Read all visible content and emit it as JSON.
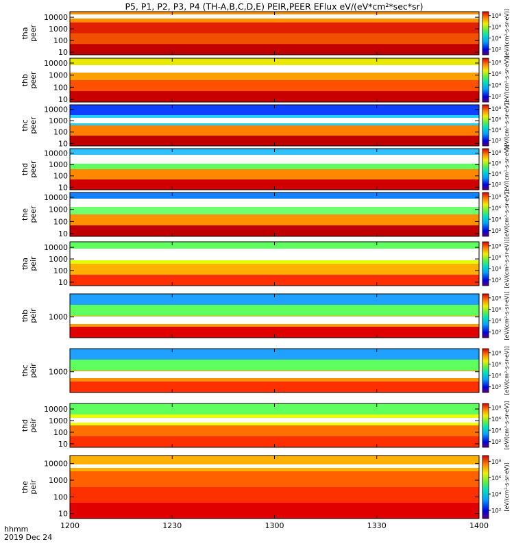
{
  "chart_data": {
    "type": "heatmap",
    "title": "P5, P1, P2, P3, P4 (TH-A,B,C,D,E) PEIR,PEER EFlux eV/(eV*cm²*sec*sr)",
    "x_axis": {
      "label_line1": "hhmm",
      "label_line2": "2019 Dec 24",
      "ticks": [
        "1200",
        "1230",
        "1300",
        "1330",
        "1400"
      ],
      "tick_minutes": [
        0,
        30,
        60,
        90,
        120
      ],
      "range_minutes": [
        0,
        120
      ]
    },
    "colorbar": {
      "scale": "log",
      "label": "[eV/(cm²-s-sr-eV)]",
      "tick_labels": [
        "10⁸",
        "10⁶",
        "10⁴",
        "10²"
      ],
      "tick_exponents": [
        8,
        6,
        4,
        2
      ],
      "range_exponent": [
        1,
        8.7
      ]
    },
    "panels": [
      {
        "label_line1": "tha",
        "label_line2": "peer",
        "yscale": "log",
        "yrange": [
          6,
          30000
        ],
        "y_ticks": [
          "10",
          "100",
          "1000",
          "10000"
        ],
        "y_tick_values": [
          10,
          100,
          1000,
          10000
        ]
      },
      {
        "label_line1": "thb",
        "label_line2": "peer",
        "yscale": "log",
        "yrange": [
          6,
          25000
        ],
        "y_ticks": [
          "10",
          "100",
          "1000",
          "10000"
        ],
        "y_tick_values": [
          10,
          100,
          1000,
          10000
        ]
      },
      {
        "label_line1": "thc",
        "label_line2": "peer",
        "yscale": "log",
        "yrange": [
          6,
          25000
        ],
        "y_ticks": [
          "10",
          "100",
          "1000",
          "10000"
        ],
        "y_tick_values": [
          10,
          100,
          1000,
          10000
        ]
      },
      {
        "label_line1": "thd",
        "label_line2": "peer",
        "yscale": "log",
        "yrange": [
          6,
          25000
        ],
        "y_ticks": [
          "10",
          "100",
          "1000",
          "10000"
        ],
        "y_tick_values": [
          10,
          100,
          1000,
          10000
        ]
      },
      {
        "label_line1": "the",
        "label_line2": "peer",
        "yscale": "log",
        "yrange": [
          6,
          25000
        ],
        "y_ticks": [
          "10",
          "100",
          "1000",
          "10000"
        ],
        "y_tick_values": [
          10,
          100,
          1000,
          10000
        ]
      },
      {
        "label_line1": "tha",
        "label_line2": "peir",
        "yscale": "log",
        "yrange": [
          5,
          30000
        ],
        "y_ticks": [
          "10",
          "100",
          "1000",
          "10000"
        ],
        "y_tick_values": [
          10,
          100,
          1000,
          10000
        ]
      },
      {
        "label_line1": "thb",
        "label_line2": "peir",
        "yscale": "log",
        "yrange": [
          200,
          6000
        ],
        "y_ticks": [
          "1000"
        ],
        "y_tick_values": [
          1000
        ]
      },
      {
        "label_line1": "thc",
        "label_line2": "peir",
        "yscale": "log",
        "yrange": [
          200,
          6000
        ],
        "y_ticks": [
          "1000"
        ],
        "y_tick_values": [
          1000
        ]
      },
      {
        "label_line1": "thd",
        "label_line2": "peir",
        "yscale": "log",
        "yrange": [
          5,
          30000
        ],
        "y_ticks": [
          "10",
          "100",
          "1000",
          "10000"
        ],
        "y_tick_values": [
          10,
          100,
          1000,
          10000
        ]
      },
      {
        "label_line1": "the",
        "label_line2": "peir",
        "yscale": "log",
        "yrange": [
          5,
          30000
        ],
        "y_ticks": [
          "10",
          "100",
          "1000",
          "10000"
        ],
        "y_tick_values": [
          10,
          100,
          1000,
          10000
        ]
      }
    ]
  }
}
